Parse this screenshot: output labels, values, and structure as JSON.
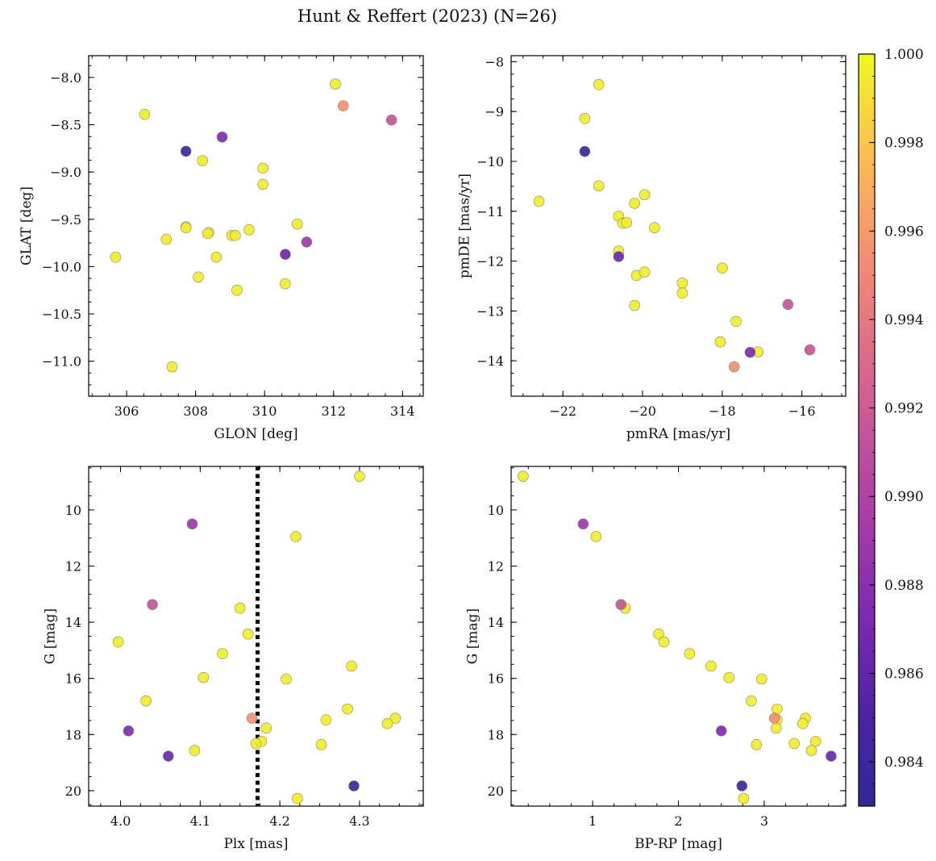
{
  "figure": {
    "title": "Hunt & Reffert (2023) (N=26)"
  },
  "colorbar": {
    "cmap": "plasma (truncated)",
    "vmin": 0.983,
    "vmax": 1.0,
    "ticks": [
      "0.984",
      "0.986",
      "0.988",
      "0.990",
      "0.992",
      "0.994",
      "0.996",
      "0.998",
      "1.000"
    ],
    "tick_values": [
      0.984,
      0.986,
      0.988,
      0.99,
      0.992,
      0.994,
      0.996,
      0.998,
      1.0
    ]
  },
  "chart_data": [
    {
      "type": "scatter",
      "xlabel": "GLON [deg]",
      "ylabel": "GLAT [deg]",
      "xlim": [
        304.9,
        314.6
      ],
      "ylim": [
        -11.37,
        -7.77
      ],
      "xticks": [
        306,
        308,
        310,
        312,
        314
      ],
      "xtick_labels": [
        "306",
        "308",
        "310",
        "312",
        "314"
      ],
      "yticks": [
        -8.0,
        -8.5,
        -9.0,
        -9.5,
        -10.0,
        -10.5,
        -11.0
      ],
      "ytick_labels": [
        "−8.0",
        "−8.5",
        "−9.0",
        "−9.5",
        "−10.0",
        "−10.5",
        "−11.0"
      ],
      "x": [
        312.05,
        312.28,
        313.68,
        306.52,
        308.77,
        307.72,
        308.2,
        309.95,
        309.95,
        310.95,
        307.72,
        307.72,
        308.38,
        308.35,
        309.05,
        309.15,
        309.55,
        311.22,
        310.6,
        307.15,
        308.6,
        305.68,
        308.08,
        310.6,
        309.2,
        307.32
      ],
      "y": [
        -8.07,
        -8.3,
        -8.45,
        -8.39,
        -8.63,
        -8.78,
        -8.88,
        -8.96,
        -9.13,
        -9.55,
        -9.58,
        -9.59,
        -9.64,
        -9.65,
        -9.67,
        -9.67,
        -9.61,
        -9.74,
        -9.87,
        -9.71,
        -9.9,
        -9.9,
        -10.11,
        -10.18,
        -10.25,
        -11.06
      ],
      "p": [
        0.9995,
        0.9955,
        0.9915,
        0.9995,
        0.9875,
        0.984,
        0.9995,
        0.9995,
        0.9995,
        0.9995,
        0.9995,
        0.9995,
        0.9995,
        0.9995,
        0.9995,
        0.9995,
        0.9995,
        0.989,
        0.9865,
        0.9995,
        0.9995,
        0.9995,
        0.9995,
        0.9995,
        0.9995,
        0.9995
      ]
    },
    {
      "type": "scatter",
      "xlabel": "pmRA [mas/yr]",
      "ylabel": "pmDE [mas/yr]",
      "xlim": [
        -23.3,
        -14.9
      ],
      "ylim": [
        -14.71,
        -7.88
      ],
      "xticks": [
        -22,
        -20,
        -18,
        -16
      ],
      "xtick_labels": [
        "−22",
        "−20",
        "−18",
        "−16"
      ],
      "yticks": [
        -8,
        -9,
        -10,
        -11,
        -12,
        -13,
        -14
      ],
      "ytick_labels": [
        "−8",
        "−9",
        "−10",
        "−11",
        "−12",
        "−13",
        "−14"
      ],
      "x": [
        -21.1,
        -21.45,
        -21.45,
        -22.6,
        -21.1,
        -19.95,
        -20.2,
        -20.6,
        -20.5,
        -20.4,
        -19.7,
        -20.6,
        -20.6,
        -20.15,
        -19.95,
        -19.0,
        -19.0,
        -20.2,
        -18.0,
        -17.65,
        -16.35,
        -18.05,
        -17.3,
        -17.1,
        -15.8,
        -17.7
      ],
      "y": [
        -8.46,
        -9.14,
        -9.8,
        -10.8,
        -10.49,
        -10.67,
        -10.84,
        -11.1,
        -11.24,
        -11.23,
        -11.33,
        -11.8,
        -11.91,
        -12.29,
        -12.22,
        -12.44,
        -12.64,
        -12.89,
        -12.14,
        -13.21,
        -12.87,
        -13.62,
        -13.83,
        -13.82,
        -13.78,
        -14.12
      ],
      "p": [
        0.9995,
        0.9995,
        0.984,
        0.9995,
        0.9995,
        0.9995,
        0.9995,
        0.9995,
        0.9995,
        0.9995,
        0.9995,
        0.9995,
        0.9865,
        0.9995,
        0.9995,
        0.9995,
        0.9995,
        0.9995,
        0.9995,
        0.9995,
        0.9915,
        0.9995,
        0.9875,
        0.9995,
        0.9915,
        0.9955
      ]
    },
    {
      "type": "scatter",
      "xlabel": "Plx [mas]",
      "ylabel": "G [mag]",
      "xlim": [
        3.96,
        4.38
      ],
      "ylim": [
        20.55,
        8.45
      ],
      "y_inverted": true,
      "vline": {
        "x": 4.172,
        "style": "dotted",
        "color": "#000000"
      },
      "xticks": [
        4.0,
        4.1,
        4.2,
        4.3
      ],
      "xtick_labels": [
        "4.0",
        "4.1",
        "4.2",
        "4.3"
      ],
      "yticks": [
        10,
        12,
        14,
        16,
        18,
        20
      ],
      "ytick_labels": [
        "10",
        "12",
        "14",
        "16",
        "18",
        "20"
      ],
      "x": [
        4.3,
        4.09,
        4.22,
        4.04,
        4.15,
        3.997,
        4.16,
        4.128,
        4.29,
        4.104,
        4.208,
        4.032,
        4.285,
        4.165,
        4.258,
        4.345,
        4.335,
        4.183,
        4.01,
        4.177,
        4.17,
        4.252,
        4.093,
        4.06,
        4.293,
        4.222
      ],
      "y": [
        8.8,
        10.5,
        10.95,
        13.37,
        13.5,
        14.7,
        14.42,
        15.12,
        15.56,
        15.97,
        16.02,
        16.8,
        17.09,
        17.42,
        17.48,
        17.42,
        17.61,
        17.77,
        17.87,
        18.24,
        18.32,
        18.36,
        18.57,
        18.77,
        19.83,
        20.28
      ],
      "p": [
        0.9995,
        0.989,
        0.9995,
        0.9915,
        0.9995,
        0.9995,
        0.9995,
        0.9995,
        0.9995,
        0.9995,
        0.9995,
        0.9995,
        0.9995,
        0.9955,
        0.9995,
        0.9995,
        0.9995,
        0.9995,
        0.9875,
        0.9995,
        0.9995,
        0.9995,
        0.9995,
        0.9865,
        0.984,
        0.9995
      ]
    },
    {
      "type": "scatter",
      "xlabel": "BP-RP [mag]",
      "ylabel": "G [mag]",
      "xlim": [
        0.05,
        3.95
      ],
      "ylim": [
        20.55,
        8.45
      ],
      "y_inverted": true,
      "xticks": [
        1,
        2,
        3
      ],
      "xtick_labels": [
        "1",
        "2",
        "3"
      ],
      "yticks": [
        10,
        12,
        14,
        16,
        18,
        20
      ],
      "ytick_labels": [
        "10",
        "12",
        "14",
        "16",
        "18",
        "20"
      ],
      "x": [
        0.19,
        0.89,
        1.04,
        1.33,
        1.38,
        1.77,
        1.83,
        2.13,
        2.38,
        2.59,
        2.97,
        2.85,
        3.15,
        3.12,
        3.15,
        3.48,
        3.45,
        3.14,
        2.5,
        3.6,
        3.35,
        2.91,
        3.55,
        3.78,
        2.74,
        2.76
      ],
      "y": [
        8.8,
        10.5,
        10.95,
        13.37,
        13.5,
        14.42,
        14.7,
        15.12,
        15.56,
        15.97,
        16.02,
        16.8,
        17.09,
        17.42,
        17.48,
        17.42,
        17.61,
        17.77,
        17.87,
        18.24,
        18.32,
        18.36,
        18.57,
        18.77,
        19.83,
        20.28
      ],
      "p": [
        0.9995,
        0.989,
        0.9995,
        0.9915,
        0.9995,
        0.9995,
        0.9995,
        0.9995,
        0.9995,
        0.9995,
        0.9995,
        0.9995,
        0.9995,
        0.9955,
        0.9995,
        0.9995,
        0.9995,
        0.9995,
        0.9875,
        0.9995,
        0.9995,
        0.9995,
        0.9995,
        0.9865,
        0.984,
        0.9995
      ]
    }
  ]
}
